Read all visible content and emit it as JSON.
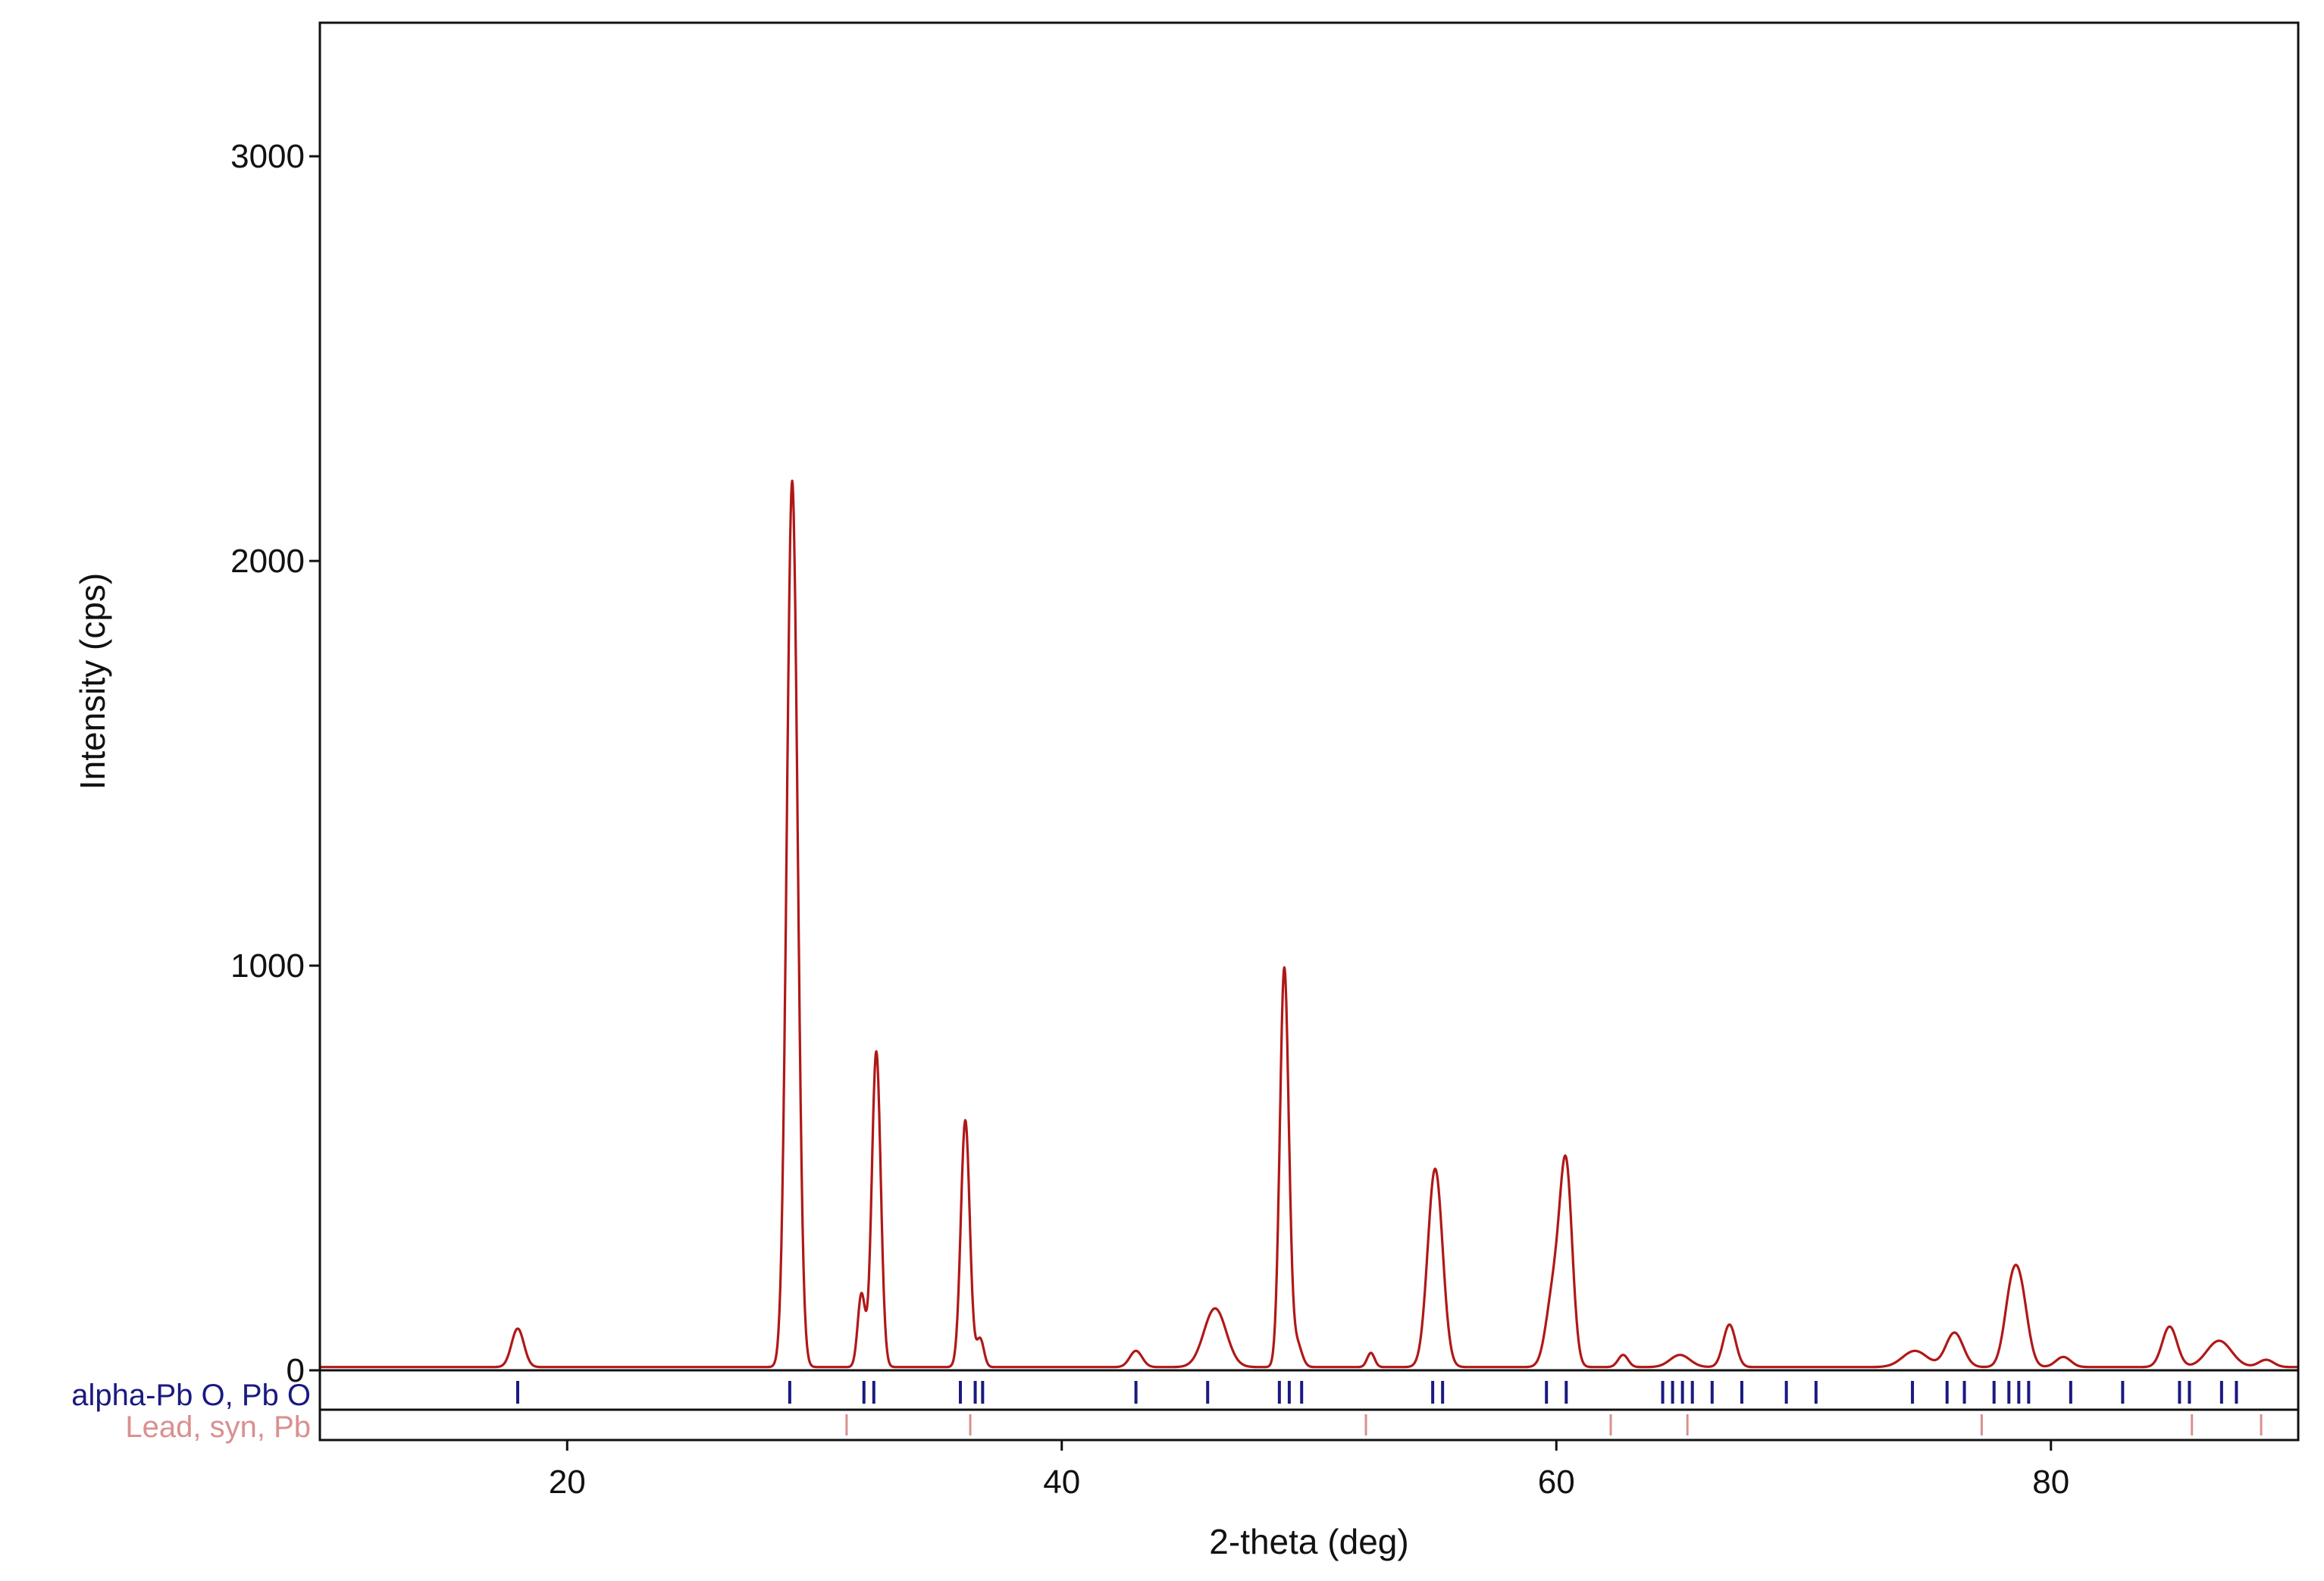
{
  "chart_data": {
    "type": "line",
    "title": "",
    "xlabel": "2-theta (deg)",
    "ylabel": "Intensity (cps)",
    "xlim": [
      10,
      90
    ],
    "ylim": [
      0,
      3330
    ],
    "x_ticks": [
      20,
      40,
      60,
      80
    ],
    "y_ticks": [
      0,
      1000,
      2000,
      3000
    ],
    "grid": false,
    "colors": {
      "pattern": "#b01818",
      "phase1": "#1a1a80",
      "phase2": "#d99090"
    },
    "peaks": [
      {
        "x": 18.0,
        "y": 95,
        "w": 0.25
      },
      {
        "x": 29.1,
        "y": 2190,
        "w": 0.22
      },
      {
        "x": 31.9,
        "y": 180,
        "w": 0.15
      },
      {
        "x": 32.5,
        "y": 780,
        "w": 0.18
      },
      {
        "x": 36.1,
        "y": 610,
        "w": 0.18
      },
      {
        "x": 36.7,
        "y": 70,
        "w": 0.15
      },
      {
        "x": 43.0,
        "y": 40,
        "w": 0.25
      },
      {
        "x": 46.2,
        "y": 145,
        "w": 0.45
      },
      {
        "x": 49.0,
        "y": 985,
        "w": 0.18
      },
      {
        "x": 49.5,
        "y": 60,
        "w": 0.2
      },
      {
        "x": 52.5,
        "y": 35,
        "w": 0.15
      },
      {
        "x": 55.1,
        "y": 490,
        "w": 0.3
      },
      {
        "x": 59.9,
        "y": 190,
        "w": 0.3
      },
      {
        "x": 60.4,
        "y": 470,
        "w": 0.25
      },
      {
        "x": 62.7,
        "y": 30,
        "w": 0.2
      },
      {
        "x": 65.0,
        "y": 30,
        "w": 0.4
      },
      {
        "x": 67.0,
        "y": 105,
        "w": 0.25
      },
      {
        "x": 74.5,
        "y": 40,
        "w": 0.5
      },
      {
        "x": 76.1,
        "y": 85,
        "w": 0.35
      },
      {
        "x": 78.4,
        "y": 165,
        "w": 0.3
      },
      {
        "x": 78.8,
        "y": 150,
        "w": 0.3
      },
      {
        "x": 80.5,
        "y": 25,
        "w": 0.3
      },
      {
        "x": 84.8,
        "y": 100,
        "w": 0.3
      },
      {
        "x": 86.8,
        "y": 65,
        "w": 0.5
      },
      {
        "x": 88.7,
        "y": 18,
        "w": 0.3
      }
    ],
    "baseline": 8,
    "phases": [
      {
        "name": "alpha-Pb O, Pb O",
        "positions": [
          18.0,
          29.0,
          32.0,
          32.4,
          35.9,
          36.5,
          36.8,
          43.0,
          45.9,
          48.8,
          49.2,
          49.7,
          55.0,
          55.4,
          59.6,
          60.4,
          64.3,
          64.7,
          65.1,
          65.5,
          66.3,
          67.5,
          69.3,
          70.5,
          74.4,
          75.8,
          76.5,
          77.7,
          78.3,
          78.7,
          79.1,
          80.8,
          82.9,
          85.2,
          85.6,
          86.9,
          87.5
        ]
      },
      {
        "name": "Lead, syn, Pb",
        "positions": [
          31.3,
          36.3,
          52.3,
          62.2,
          65.3,
          77.2,
          85.7,
          88.5
        ]
      }
    ]
  }
}
